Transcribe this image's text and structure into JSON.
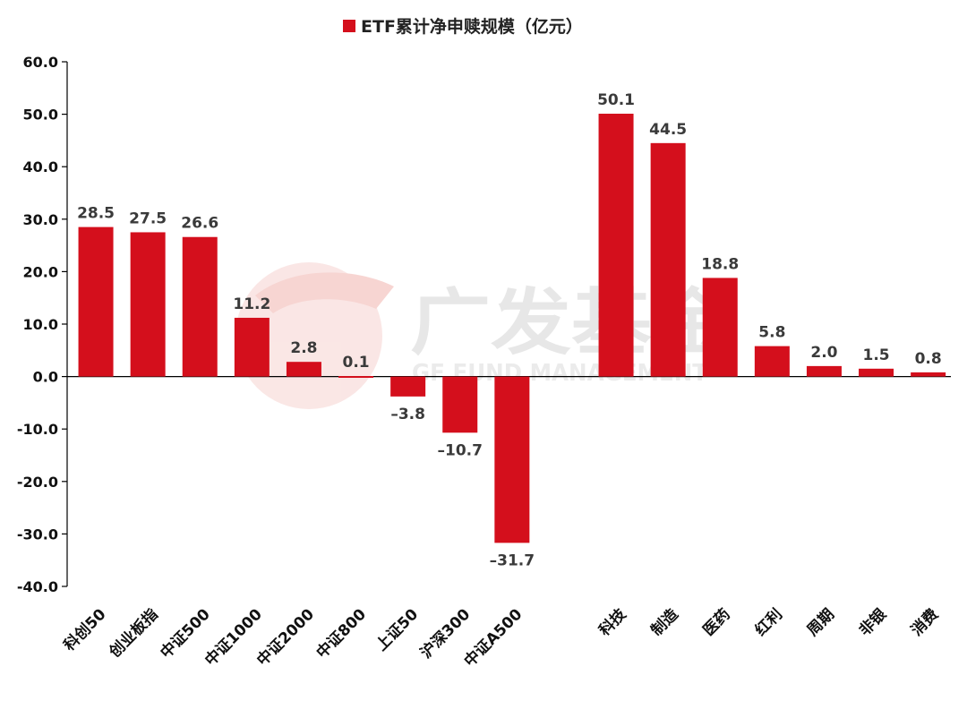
{
  "watermark": {
    "brand_cn": "广发基金",
    "brand_en": "GF FUND MANAGEMENT",
    "color": "#d9d9d9",
    "logo_color": "#f4c7c3"
  },
  "chart_data": {
    "type": "bar",
    "title": "",
    "legend": [
      {
        "label": "ETF累计净申赎规模（亿元）",
        "color": "#d40f1c"
      }
    ],
    "legend_position": "top-center",
    "xlabel": "",
    "ylabel": "",
    "ylim": [
      -40,
      60
    ],
    "yticks": [
      "60.0",
      "50.0",
      "40.0",
      "30.0",
      "20.0",
      "10.0",
      "0.0",
      "-10.0",
      "-20.0",
      "-30.0",
      "-40.0"
    ],
    "grid": false,
    "bar_color": "#d40f1c",
    "categories": [
      "科创50",
      "创业板指",
      "中证500",
      "中证1000",
      "中证2000",
      "中证800",
      "上证50",
      "沪深300",
      "中证A500",
      "",
      "科技",
      "制造",
      "医药",
      "红利",
      "周期",
      "非银",
      "消费"
    ],
    "values": [
      28.5,
      27.5,
      26.6,
      11.2,
      2.8,
      0.1,
      -3.8,
      -10.7,
      -31.7,
      null,
      50.1,
      44.5,
      18.8,
      5.8,
      2.0,
      1.5,
      0.8
    ],
    "labels": [
      "28.5",
      "27.5",
      "26.6",
      "11.2",
      "2.8",
      "0.1",
      "–3.8",
      "–10.7",
      "–31.7",
      "",
      "50.1",
      "44.5",
      "18.8",
      "5.8",
      "2.0",
      "1.5",
      "0.8"
    ]
  }
}
